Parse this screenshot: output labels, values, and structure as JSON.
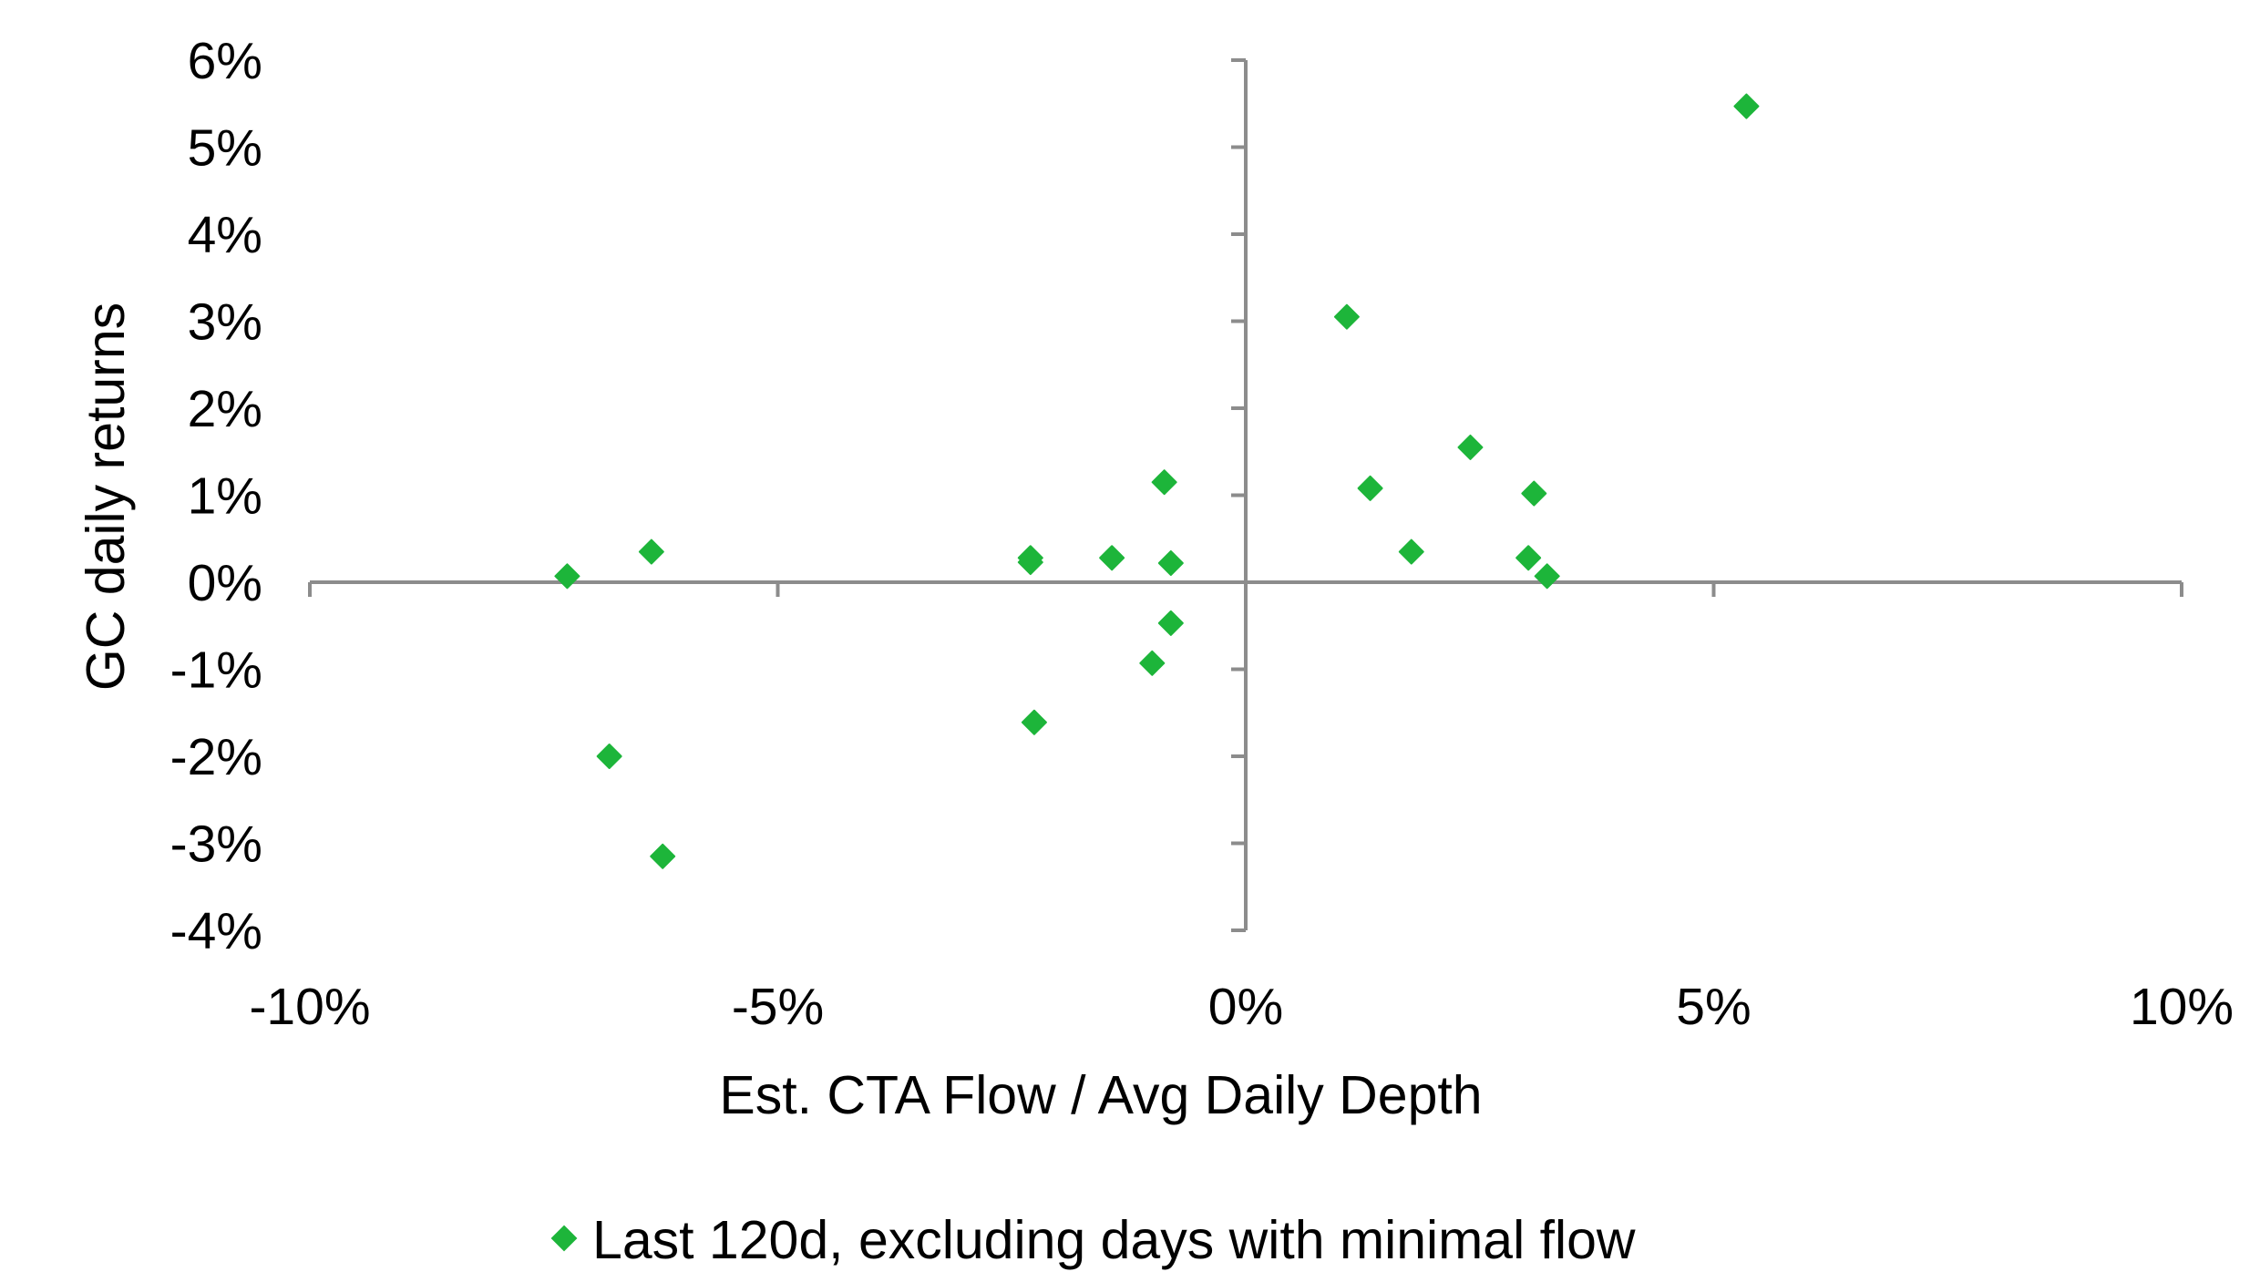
{
  "chart_data": {
    "type": "scatter",
    "xlabel": "Est. CTA Flow / Avg Daily Depth",
    "ylabel": "GC daily returns",
    "xlim": [
      -0.1,
      0.1
    ],
    "ylim": [
      -0.04,
      0.06
    ],
    "x_ticks": [
      -0.1,
      -0.05,
      0.0,
      0.05,
      0.1
    ],
    "y_ticks": [
      -0.04,
      -0.03,
      -0.02,
      -0.01,
      0.0,
      0.01,
      0.02,
      0.03,
      0.04,
      0.05,
      0.06
    ],
    "x_tick_labels": [
      "-10%",
      "-5%",
      "0%",
      "5%",
      "10%"
    ],
    "y_tick_labels": [
      "-4%",
      "-3%",
      "-2%",
      "-1%",
      "0%",
      "1%",
      "2%",
      "3%",
      "4%",
      "5%",
      "6%"
    ],
    "grid": false,
    "legend_position": "bottom-center",
    "series": [
      {
        "name": "Last 120d, excluding days with minimal flow",
        "color": "#1db53a",
        "marker": "diamond",
        "points": [
          {
            "x": -0.0725,
            "y": 0.0007
          },
          {
            "x": -0.0635,
            "y": 0.0035
          },
          {
            "x": -0.068,
            "y": -0.02
          },
          {
            "x": -0.0623,
            "y": -0.0315
          },
          {
            "x": -0.023,
            "y": 0.0023
          },
          {
            "x": -0.023,
            "y": 0.0028
          },
          {
            "x": -0.0226,
            "y": -0.0161
          },
          {
            "x": -0.0143,
            "y": 0.0028
          },
          {
            "x": -0.0087,
            "y": 0.0115
          },
          {
            "x": -0.008,
            "y": 0.0022
          },
          {
            "x": -0.008,
            "y": -0.0047
          },
          {
            "x": -0.01,
            "y": -0.0093
          },
          {
            "x": 0.0108,
            "y": 0.0305
          },
          {
            "x": 0.0133,
            "y": 0.0108
          },
          {
            "x": 0.0177,
            "y": 0.0035
          },
          {
            "x": 0.024,
            "y": 0.0155
          },
          {
            "x": 0.0308,
            "y": 0.0102
          },
          {
            "x": 0.0302,
            "y": 0.0028
          },
          {
            "x": 0.0322,
            "y": 0.0007
          },
          {
            "x": 0.0535,
            "y": 0.0547
          }
        ]
      }
    ]
  }
}
